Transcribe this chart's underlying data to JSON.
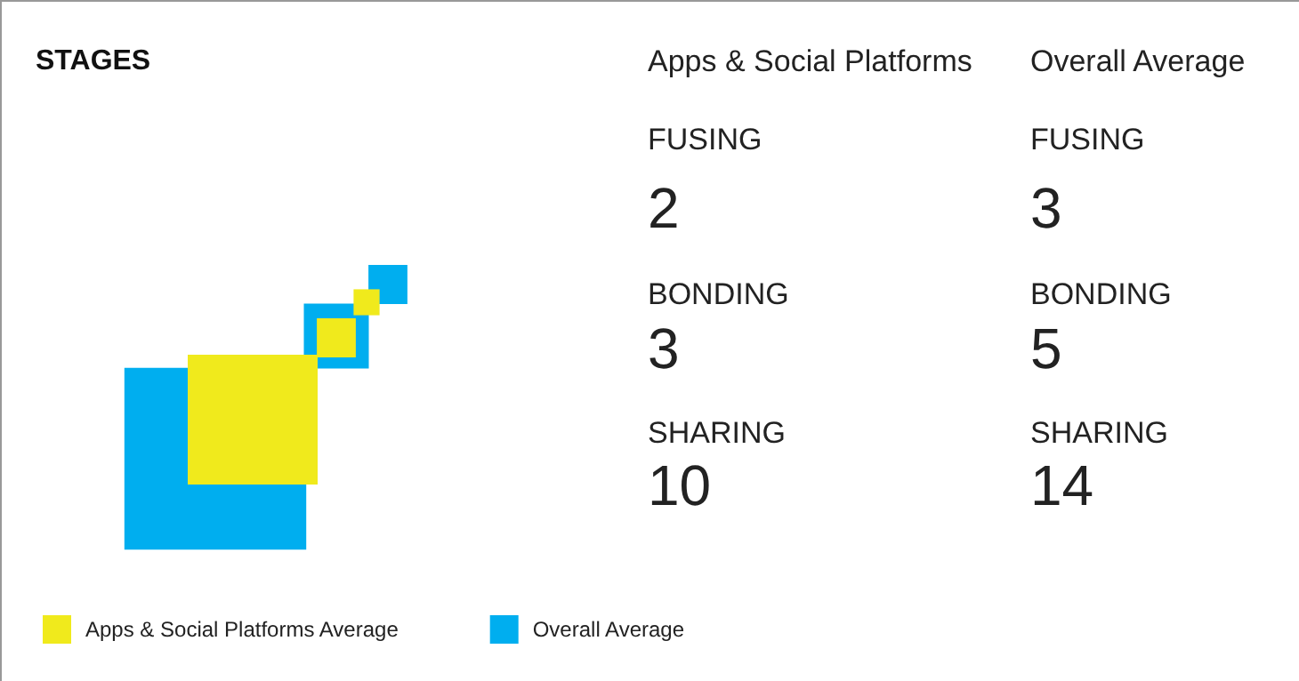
{
  "chart_data": {
    "type": "other",
    "title": "STAGES",
    "categories": [
      "FUSING",
      "BONDING",
      "SHARING"
    ],
    "annotations": [
      "Apps & Social Platforms",
      "Overall Average"
    ],
    "series": [
      {
        "name": "Overall Average",
        "color": "#00aeef",
        "values": [
          3,
          5,
          14
        ]
      },
      {
        "name": "Apps & Social Platforms Average",
        "color": "#f0ea1c",
        "values": [
          2,
          3,
          10
        ]
      }
    ],
    "data_labels": true,
    "legend": "bottom left"
  }
}
